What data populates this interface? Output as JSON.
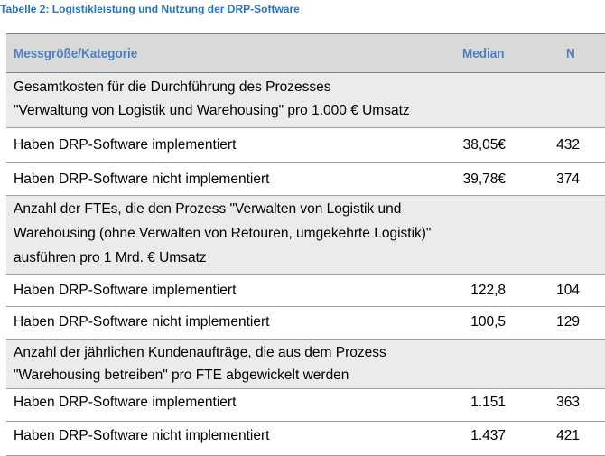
{
  "caption": "Tabelle 2: Logistikleistung und Nutzung der DRP-Software",
  "header": {
    "category": "Messgröße/Kategorie",
    "median": "Median",
    "n": "N"
  },
  "groups": [
    {
      "lines": [
        "Gesamtkosten für die Durchführung des Prozesses",
        "\"Verwaltung von Logistik und Warehousing\" pro 1.000 € Umsatz"
      ],
      "rows": [
        {
          "label": "Haben DRP-Software implementiert",
          "median": "38,05€",
          "n": "432"
        },
        {
          "label": "Haben DRP-Software nicht implementiert",
          "median": "39,78€",
          "n": "374"
        }
      ]
    },
    {
      "lines": [
        "Anzahl der FTEs, die den Prozess \"Verwalten von Logistik und",
        "Warehousing (ohne Verwalten von Retouren, umgekehrte Logistik)\"",
        "ausführen pro 1 Mrd. € Umsatz"
      ],
      "rows": [
        {
          "label": "Haben DRP-Software implementiert",
          "median": "122,8",
          "n": "104"
        },
        {
          "label": "Haben DRP-Software nicht implementiert",
          "median": "100,5",
          "n": "129"
        }
      ]
    },
    {
      "lines": [
        "Anzahl der jährlichen Kundenaufträge, die aus dem Prozess",
        "\"Warehousing betreiben\" pro FTE abgewickelt werden"
      ],
      "rows": [
        {
          "label": "Haben DRP-Software implementiert",
          "median": "1.151",
          "n": "363"
        },
        {
          "label": "Haben DRP-Software nicht implementiert",
          "median": "1.437",
          "n": "421"
        }
      ]
    }
  ]
}
